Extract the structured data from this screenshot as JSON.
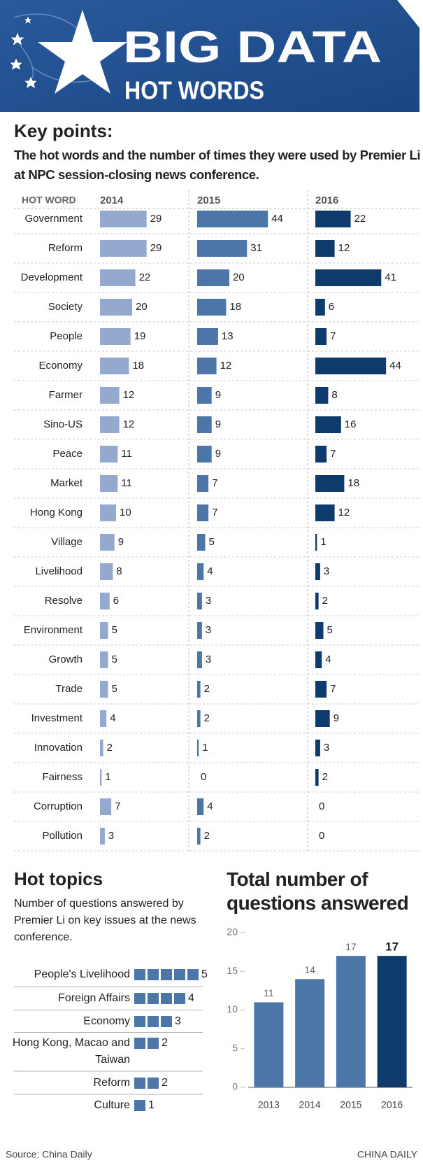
{
  "header": {
    "title": "BIG DATA",
    "subtitle": "HOT WORDS"
  },
  "chart_data": [
    {
      "type": "hbar",
      "title": "Key points:",
      "subtitle": "The hot words and the number of times they were used by Premier Li at NPC session-closing news conference.",
      "category_header": "HOT WORD",
      "categories": [
        "Government",
        "Reform",
        "Development",
        "Society",
        "People",
        "Economy",
        "Farmer",
        "Sino-US",
        "Peace",
        "Market",
        "Hong Kong",
        "Village",
        "Livelihood",
        "Resolve",
        "Environment",
        "Growth",
        "Trade",
        "Investment",
        "Innovation",
        "Fairness",
        "Corruption",
        "Pollution"
      ],
      "series": [
        {
          "name": "2014",
          "color": "#93aace",
          "values": [
            29,
            29,
            22,
            20,
            19,
            18,
            12,
            12,
            11,
            11,
            10,
            9,
            8,
            6,
            5,
            5,
            5,
            4,
            2,
            1,
            7,
            3
          ]
        },
        {
          "name": "2015",
          "color": "#4d76a8",
          "values": [
            44,
            31,
            20,
            18,
            13,
            12,
            9,
            9,
            9,
            7,
            7,
            5,
            4,
            3,
            3,
            3,
            2,
            2,
            1,
            0,
            4,
            2
          ]
        },
        {
          "name": "2016",
          "color": "#0e3b6c",
          "values": [
            22,
            12,
            41,
            6,
            7,
            44,
            8,
            16,
            7,
            18,
            12,
            1,
            3,
            2,
            5,
            4,
            7,
            9,
            3,
            2,
            0,
            0
          ]
        }
      ]
    },
    {
      "type": "pictogram",
      "title": "Hot topics",
      "subtitle": "Number of questions answered by Premier Li on key issues at the news conference.",
      "categories": [
        "People's Livelihood",
        "Foreign Affairs",
        "Economy",
        "Hong Kong, Macao and Taiwan",
        "Reform",
        "Culture"
      ],
      "values": [
        5,
        4,
        3,
        2,
        2,
        1
      ],
      "color": "#4d76a8"
    },
    {
      "type": "bar",
      "title": "Total number of questions answered",
      "categories": [
        "2013",
        "2014",
        "2015",
        "2016"
      ],
      "values": [
        11,
        14,
        17,
        17
      ],
      "colors": [
        "#4d76a8",
        "#4d76a8",
        "#4d76a8",
        "#0e3b6c"
      ],
      "ylim": [
        0,
        20
      ],
      "yticks": [
        0,
        5,
        10,
        15,
        20
      ]
    }
  ],
  "footer": {
    "source": "Source: China Daily",
    "brand": "CHINA DAILY"
  }
}
